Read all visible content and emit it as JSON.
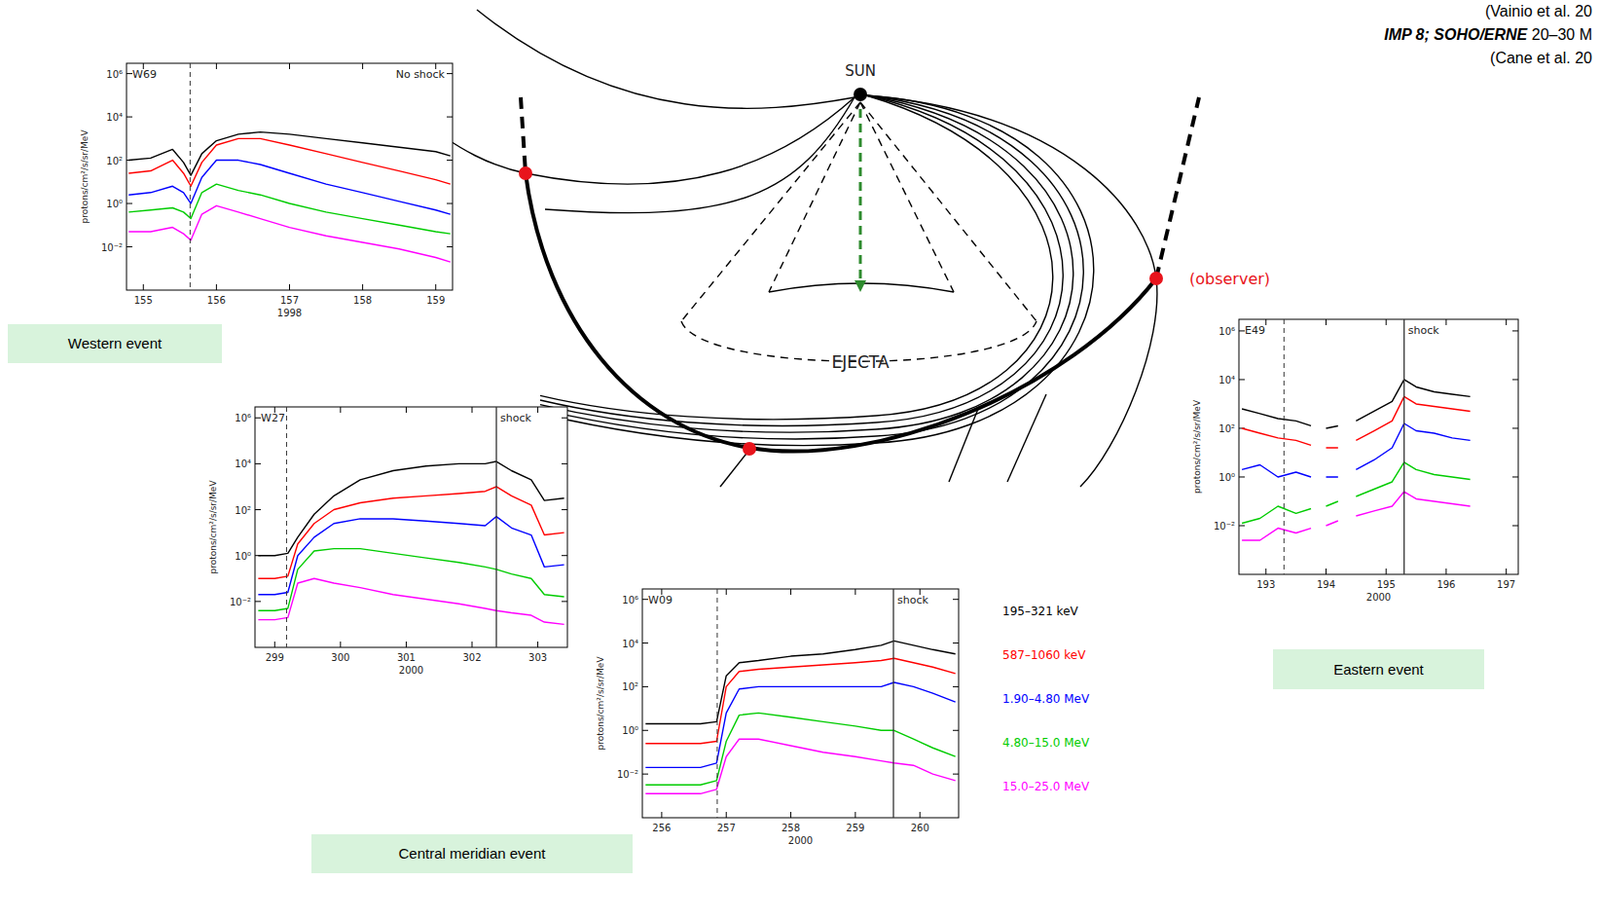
{
  "diagram": {
    "sun_label": "SUN",
    "ejecta_label": "EJECTA",
    "observer_label": "(observer)",
    "header": {
      "line1": "(Vainio et al. 20",
      "instrument": "IMP 8; SOHO/ERNE",
      "energy": " 20–30 M",
      "line3": "(Cane et al. 20"
    }
  },
  "chart_data": [
    {
      "type": "line",
      "log": "y",
      "grid": false,
      "caption": "Western event",
      "xlabel": "1998",
      "ylabel": "protons/cm²/s/sr/MeV",
      "xlim": [
        154.77,
        159.23
      ],
      "xticks": [
        155,
        156,
        157,
        158,
        159
      ],
      "ylim": [
        0.0001,
        3000000
      ],
      "yticks": [
        {
          "value": 0.01,
          "label": "10⁻²"
        },
        {
          "value": 1,
          "label": "10⁰"
        },
        {
          "value": 100,
          "label": "10²"
        },
        {
          "value": 10000,
          "label": "10⁴"
        },
        {
          "value": 1000000,
          "label": "10⁶"
        }
      ],
      "annotations": [
        {
          "text": "W69",
          "x": 155.64,
          "line_style": "dashed"
        },
        {
          "text": "No shock"
        }
      ],
      "x": [
        154.8,
        155.1,
        155.4,
        155.55,
        155.65,
        155.8,
        156.0,
        156.3,
        156.6,
        157.0,
        157.5,
        158.0,
        158.5,
        159.0,
        159.2
      ],
      "series": [
        {
          "color": "#000000",
          "values": [
            100,
            126,
            316,
            79,
            20,
            200,
            790,
            1580,
            2000,
            1580,
            1000,
            630,
            400,
            250,
            158
          ]
        },
        {
          "color": "#ff0000",
          "values": [
            25,
            32,
            100,
            25,
            6.3,
            79,
            500,
            1000,
            1000,
            500,
            200,
            79,
            32,
            12.6,
            7.9
          ]
        },
        {
          "color": "#0000ff",
          "values": [
            2.5,
            3.2,
            6.3,
            3.2,
            1,
            16,
            100,
            100,
            63,
            25,
            7.9,
            3.2,
            1.26,
            0.5,
            0.32
          ]
        },
        {
          "color": "#00cc00",
          "values": [
            0.4,
            0.5,
            0.63,
            0.4,
            0.2,
            3.2,
            7.9,
            4,
            2.5,
            1,
            0.4,
            0.2,
            0.1,
            0.05,
            0.04
          ]
        },
        {
          "color": "#ff00ff",
          "values": [
            0.05,
            0.05,
            0.079,
            0.04,
            0.02,
            0.32,
            0.79,
            0.4,
            0.2,
            0.079,
            0.032,
            0.016,
            0.0079,
            0.0032,
            0.002
          ]
        }
      ]
    },
    {
      "type": "line",
      "log": "y",
      "grid": false,
      "xlabel": "2000",
      "ylabel": "protons/cm²/s/sr/MeV",
      "xlim": [
        298.7,
        303.45
      ],
      "xticks": [
        299,
        300,
        301,
        302,
        303
      ],
      "ylim": [
        0.0001,
        3000000
      ],
      "yticks": [
        {
          "value": 0.01,
          "label": "10⁻²"
        },
        {
          "value": 1,
          "label": "10⁰"
        },
        {
          "value": 100,
          "label": "10²"
        },
        {
          "value": 10000,
          "label": "10⁴"
        },
        {
          "value": 1000000,
          "label": "10⁶"
        }
      ],
      "annotations": [
        {
          "text": "W27",
          "x": 299.18,
          "line_style": "dashed"
        },
        {
          "text": "shock",
          "x": 302.37,
          "line_style": "solid"
        }
      ],
      "x": [
        298.75,
        299.0,
        299.2,
        299.35,
        299.6,
        299.9,
        300.3,
        300.8,
        301.3,
        301.8,
        302.2,
        302.37,
        302.6,
        302.9,
        303.1,
        303.4
      ],
      "series": [
        {
          "color": "#000000",
          "values": [
            1,
            1,
            1.26,
            6.3,
            63,
            400,
            2000,
            5000,
            7900,
            10000,
            10000,
            12600,
            5000,
            2000,
            250,
            316
          ]
        },
        {
          "color": "#ff0000",
          "values": [
            0.1,
            0.1,
            0.126,
            3.2,
            25,
            100,
            200,
            316,
            400,
            500,
            630,
            1000,
            400,
            158,
            7.9,
            10
          ]
        },
        {
          "color": "#0000ff",
          "values": [
            0.02,
            0.02,
            0.025,
            1,
            6.3,
            25,
            40,
            40,
            32,
            25,
            20,
            50,
            16,
            7.9,
            0.32,
            0.4
          ]
        },
        {
          "color": "#00cc00",
          "values": [
            0.004,
            0.004,
            0.005,
            0.25,
            1.58,
            2.0,
            2.0,
            1.26,
            0.79,
            0.5,
            0.32,
            0.25,
            0.158,
            0.1,
            0.02,
            0.016
          ]
        },
        {
          "color": "#ff00ff",
          "values": [
            0.0016,
            0.0016,
            0.002,
            0.063,
            0.1,
            0.063,
            0.04,
            0.02,
            0.0126,
            0.0079,
            0.005,
            0.004,
            0.0032,
            0.0025,
            0.00126,
            0.001
          ]
        }
      ]
    },
    {
      "type": "line",
      "log": "y",
      "grid": false,
      "legend": "right",
      "caption": "Central meridian event",
      "xlabel": "2000",
      "ylabel": "protons/cm²/s/sr/MeV",
      "xlim": [
        255.7,
        260.6
      ],
      "xticks": [
        256,
        257,
        258,
        259,
        260
      ],
      "ylim": [
        0.0001,
        3000000
      ],
      "yticks": [
        {
          "value": 0.01,
          "label": "10⁻²"
        },
        {
          "value": 1,
          "label": "10⁰"
        },
        {
          "value": 100,
          "label": "10²"
        },
        {
          "value": 10000,
          "label": "10⁴"
        },
        {
          "value": 1000000,
          "label": "10⁶"
        }
      ],
      "annotations": [
        {
          "text": "W09",
          "x": 256.86,
          "line_style": "dashed"
        },
        {
          "text": "shock",
          "x": 259.59,
          "line_style": "solid"
        }
      ],
      "x": [
        255.75,
        256.2,
        256.6,
        256.85,
        257.0,
        257.2,
        257.5,
        258.0,
        258.5,
        259.0,
        259.4,
        259.6,
        259.9,
        260.2,
        260.55
      ],
      "series": [
        {
          "name": "195–321 keV",
          "color": "#000000",
          "values": [
            2.0,
            2.0,
            2.0,
            2.5,
            316,
            1260,
            1580,
            2500,
            3160,
            5000,
            7900,
            12600,
            7900,
            5000,
            3160
          ]
        },
        {
          "name": "587–1060 keV",
          "color": "#ff0000",
          "values": [
            0.25,
            0.25,
            0.25,
            0.316,
            100,
            500,
            630,
            790,
            1000,
            1260,
            1580,
            2000,
            1260,
            790,
            400
          ]
        },
        {
          "name": "1.90–4.80 MeV",
          "color": "#0000ff",
          "values": [
            0.02,
            0.02,
            0.02,
            0.032,
            6.3,
            79,
            100,
            100,
            100,
            100,
            100,
            158,
            100,
            50,
            20
          ]
        },
        {
          "name": "4.80–15.0 MeV",
          "color": "#00cc00",
          "values": [
            0.0032,
            0.0032,
            0.0032,
            0.005,
            0.316,
            5.0,
            6.3,
            4.0,
            2.5,
            1.58,
            1,
            1,
            0.4,
            0.158,
            0.063
          ]
        },
        {
          "name": "15.0–25.0 MeV",
          "color": "#ff00ff",
          "values": [
            0.00126,
            0.00126,
            0.00126,
            0.002,
            0.063,
            0.4,
            0.4,
            0.2,
            0.1,
            0.063,
            0.04,
            0.032,
            0.025,
            0.01,
            0.005
          ]
        }
      ]
    },
    {
      "type": "line",
      "log": "y",
      "grid": false,
      "caption": "Eastern event",
      "xlabel": "2000",
      "ylabel": "protons/cm²/s/sr/MeV",
      "xlim": [
        192.55,
        197.2
      ],
      "xticks": [
        193,
        194,
        195,
        196,
        197
      ],
      "ylim": [
        0.0001,
        3000000
      ],
      "yticks": [
        {
          "value": 0.01,
          "label": "10⁻²"
        },
        {
          "value": 1,
          "label": "10⁰"
        },
        {
          "value": 100,
          "label": "10²"
        },
        {
          "value": 10000,
          "label": "10⁴"
        },
        {
          "value": 1000000,
          "label": "10⁶"
        }
      ],
      "annotations": [
        {
          "text": "E49",
          "x": 193.3,
          "line_style": "dashed"
        },
        {
          "text": "shock",
          "x": 195.3,
          "line_style": "solid"
        }
      ],
      "x": [
        192.6,
        192.9,
        193.2,
        193.5,
        193.75,
        193.85,
        194.0,
        194.2,
        194.3,
        194.5,
        194.8,
        195.1,
        195.3,
        195.5,
        195.8,
        196.1,
        196.4
      ],
      "series": [
        {
          "color": "#000000",
          "values": [
            630,
            400,
            250,
            200,
            126,
            null,
            100,
            126,
            null,
            200,
            500,
            1260,
            10000,
            5000,
            3160,
            2500,
            2000
          ]
        },
        {
          "color": "#ff0000",
          "values": [
            100,
            63,
            40,
            32,
            20,
            null,
            15.8,
            15.8,
            null,
            32,
            79,
            200,
            2000,
            1000,
            790,
            630,
            500
          ]
        },
        {
          "color": "#0000ff",
          "values": [
            2.0,
            3.16,
            1,
            1.58,
            1,
            null,
            1,
            1,
            null,
            2.0,
            5.0,
            15.8,
            158,
            79,
            63,
            40,
            32
          ]
        },
        {
          "color": "#00cc00",
          "values": [
            0.0126,
            0.02,
            0.063,
            0.032,
            0.05,
            null,
            0.063,
            0.1,
            null,
            0.158,
            0.316,
            0.63,
            4.0,
            2.0,
            1.26,
            1.0,
            0.79
          ]
        },
        {
          "color": "#ff00ff",
          "values": [
            0.0025,
            0.0025,
            0.0079,
            0.005,
            0.0079,
            null,
            0.01,
            0.0158,
            null,
            0.025,
            0.04,
            0.063,
            0.25,
            0.126,
            0.1,
            0.079,
            0.063
          ]
        }
      ]
    }
  ]
}
